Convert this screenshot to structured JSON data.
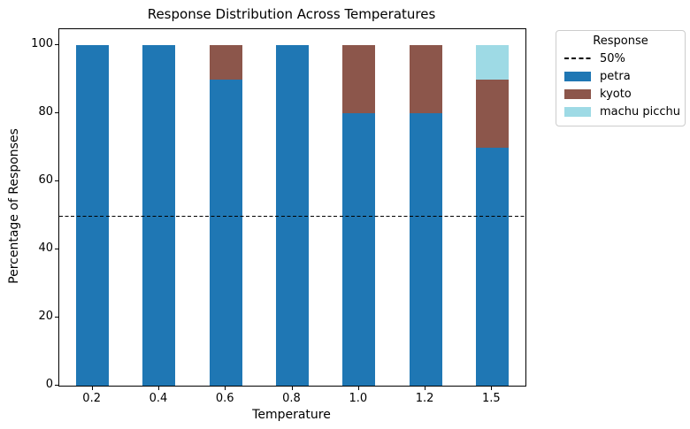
{
  "figure": {
    "background": "#ffffff",
    "axis_color": "#000000"
  },
  "chart_data": {
    "type": "bar",
    "stacked": true,
    "title": "Response Distribution Across Temperatures",
    "xlabel": "Temperature",
    "ylabel": "Percentage of Responses",
    "categories": [
      "0.2",
      "0.4",
      "0.6",
      "0.8",
      "1.0",
      "1.2",
      "1.5"
    ],
    "series": [
      {
        "name": "petra",
        "color": "#1f77b4",
        "values": [
          100,
          100,
          90,
          100,
          80,
          80,
          70
        ]
      },
      {
        "name": "kyoto",
        "color": "#8c564b",
        "values": [
          0,
          0,
          10,
          0,
          20,
          20,
          20
        ]
      },
      {
        "name": "machu picchu",
        "color": "#9edae5",
        "values": [
          0,
          0,
          0,
          0,
          0,
          0,
          10
        ]
      }
    ],
    "yticks": [
      0,
      20,
      40,
      60,
      80,
      100
    ],
    "ylim": [
      0,
      104.7
    ],
    "reference_line": {
      "label": "50%",
      "value": 50,
      "style": "dashed",
      "color": "#000000"
    },
    "legend": {
      "title": "Response",
      "position": "upper right outside"
    },
    "grid": false
  }
}
